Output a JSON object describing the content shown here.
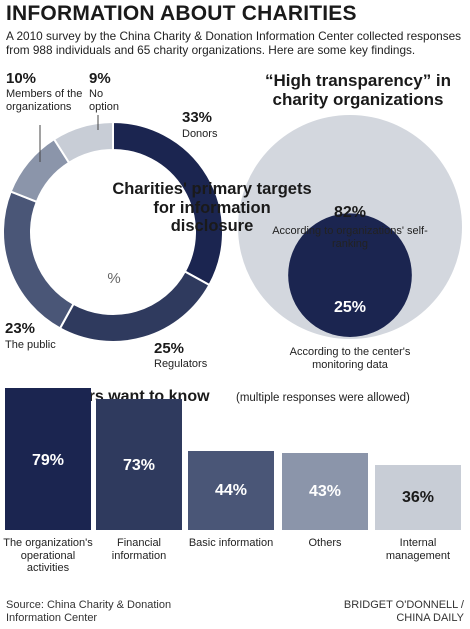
{
  "title": "INFORMATION ABOUT CHARITIES",
  "intro": "A 2010 survey by the China Charity & Donation Information Center collected responses from 988 individuals and 65 charity organizations. Here are some key findings.",
  "colors": {
    "navy": "#1b2550",
    "dark": "#2f3a5e",
    "mid": "#4a5677",
    "slate": "#8b95aa",
    "light": "#c8cdd6",
    "pale": "#d3d7de"
  },
  "chart_data": [
    {
      "type": "pie",
      "title": "Charities' primary targets for information disclosure",
      "unit": "%",
      "slices": [
        {
          "label": "Donors",
          "value": 33,
          "value_label": "33%"
        },
        {
          "label": "Regulators",
          "value": 25,
          "value_label": "25%"
        },
        {
          "label": "The public",
          "value": 23,
          "value_label": "23%"
        },
        {
          "label": "Members of the organizations",
          "value": 10,
          "value_label": "10%"
        },
        {
          "label": "No option",
          "value": 9,
          "value_label": "9%"
        }
      ]
    },
    {
      "type": "area",
      "title": "“High transparency” in charity organizations",
      "items": [
        {
          "label": "According to organizations' self-ranking",
          "value": 82,
          "value_label": "82%"
        },
        {
          "label": "According to the center's monitoring data",
          "value": 25,
          "value_label": "25%"
        }
      ]
    },
    {
      "type": "bar",
      "title": "What donors want to know",
      "subtitle": "(multiple responses were allowed)",
      "categories": [
        "The organization's operational activities",
        "Financial information",
        "Basic information",
        "Others",
        "Internal management"
      ],
      "values": [
        79,
        73,
        44,
        43,
        36
      ],
      "value_labels": [
        "79%",
        "73%",
        "44%",
        "43%",
        "36%"
      ],
      "ylim": [
        0,
        100
      ]
    }
  ],
  "footer": {
    "source": "Source: China Charity & Donation Information Center",
    "credit": "BRIDGET O'DONNELL / CHINA DAILY"
  }
}
